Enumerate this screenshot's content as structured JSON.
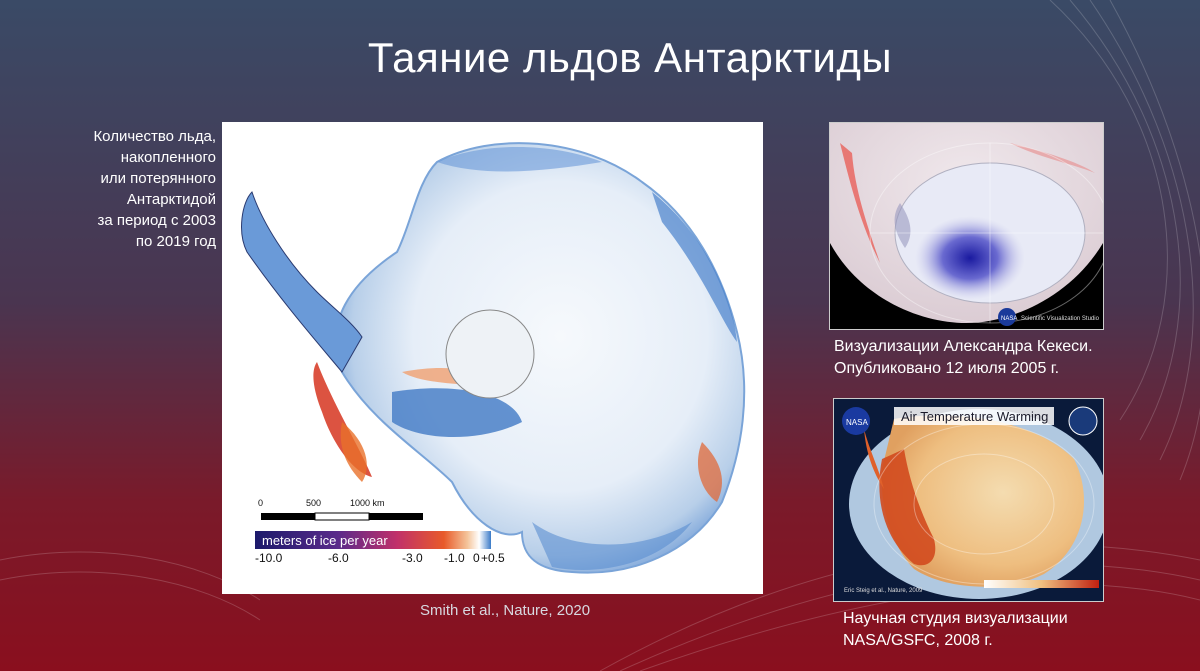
{
  "slide": {
    "title": "Таяние льдов Антарктиды",
    "left_caption": [
      "Количество льда,",
      "накопленного",
      "или потерянного",
      "Антарктидой",
      "за период с 2003",
      "по 2019 год"
    ],
    "map": {
      "scale_labels": [
        "0",
        "500",
        "1000 km"
      ],
      "legend_title": "meters of ice per year",
      "legend_ticks": [
        "-10.0",
        "-6.0",
        "-3.0",
        "-1.0",
        "0",
        "+0.5"
      ]
    },
    "map_credit": "Smith et al., Nature, 2020",
    "visualization1": {
      "caption": [
        "Визуализации Александра Кекеси.",
        "Опубликовано 12 июля 2005 г."
      ],
      "watermark": "Scientific Visualization Studio",
      "logo": "NASA"
    },
    "visualization2": {
      "inner_title": "Air Temperature Warming",
      "inner_credit": "Eric Steig et al., Nature, 2009",
      "logo": "NASA",
      "caption": [
        "Научная студия визуализации",
        "NASA/GSFC, 2008 г."
      ]
    }
  },
  "colors": {
    "legend_deep": "#1c1a6b",
    "legend_mid": "#c0306a",
    "legend_red": "#e85a2a",
    "legend_blue": "#3a7ac8",
    "ice_white": "#f4f7fb",
    "loss_red": "#d84a30",
    "gain_blue": "#5a8ed0"
  }
}
